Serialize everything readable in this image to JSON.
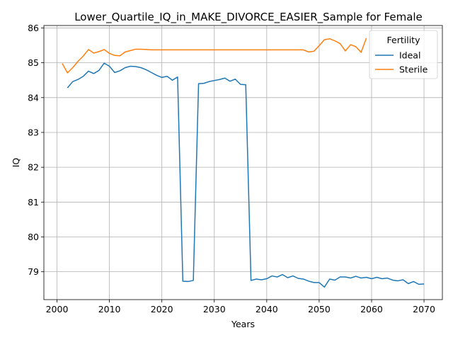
{
  "chart_data": {
    "type": "line",
    "title": "Lower_Quartile_IQ_in_MAKE_DIVORCE_EASIER_Sample for Female",
    "xlabel": "Years",
    "ylabel": "IQ",
    "xlim": [
      1997.5,
      2073.5
    ],
    "ylim": [
      78.2,
      86.07
    ],
    "xticks": [
      2000,
      2010,
      2020,
      2030,
      2040,
      2050,
      2060,
      2070
    ],
    "yticks": [
      79,
      80,
      81,
      82,
      83,
      84,
      85,
      86
    ],
    "grid": true,
    "legend": {
      "title": "Fertility",
      "position": "top-right"
    },
    "series": [
      {
        "name": "Ideal",
        "color": "#1f77b4",
        "x": [
          2002,
          2003,
          2004,
          2005,
          2006,
          2007,
          2008,
          2009,
          2010,
          2011,
          2012,
          2013,
          2014,
          2015,
          2016,
          2017,
          2018,
          2019,
          2020,
          2021,
          2022,
          2023,
          2024,
          2025,
          2026,
          2027,
          2028,
          2029,
          2030,
          2031,
          2032,
          2033,
          2034,
          2035,
          2036,
          2037,
          2038,
          2039,
          2040,
          2041,
          2042,
          2043,
          2044,
          2045,
          2046,
          2047,
          2048,
          2049,
          2050,
          2051,
          2052,
          2053,
          2054,
          2055,
          2056,
          2057,
          2058,
          2059,
          2060,
          2061,
          2062,
          2063,
          2064,
          2065,
          2066,
          2067,
          2068,
          2069,
          2070
        ],
        "values": [
          84.28,
          84.46,
          84.52,
          84.61,
          84.76,
          84.69,
          84.78,
          84.99,
          84.9,
          84.72,
          84.77,
          84.86,
          84.9,
          84.89,
          84.86,
          84.8,
          84.72,
          84.64,
          84.58,
          84.61,
          84.5,
          84.59,
          78.73,
          78.72,
          78.75,
          84.4,
          84.41,
          84.46,
          84.49,
          84.52,
          84.56,
          84.47,
          84.53,
          84.38,
          84.37,
          78.75,
          78.79,
          78.77,
          78.8,
          78.88,
          78.85,
          78.92,
          78.83,
          78.88,
          78.81,
          78.79,
          78.73,
          78.69,
          78.69,
          78.56,
          78.79,
          78.76,
          78.85,
          78.85,
          78.82,
          78.87,
          78.82,
          78.84,
          78.8,
          78.84,
          78.8,
          78.82,
          78.76,
          78.74,
          78.77,
          78.66,
          78.72,
          78.64,
          78.65
        ]
      },
      {
        "name": "Sterile",
        "color": "#ff7f0e",
        "x": [
          2001,
          2002,
          2003,
          2004,
          2005,
          2006,
          2007,
          2008,
          2009,
          2010,
          2011,
          2012,
          2013,
          2014,
          2015,
          2016,
          2017,
          2018,
          2019,
          2020,
          2021,
          2022,
          2023,
          2024,
          2025,
          2026,
          2027,
          2028,
          2029,
          2030,
          2031,
          2032,
          2033,
          2034,
          2035,
          2036,
          2037,
          2038,
          2039,
          2040,
          2041,
          2042,
          2043,
          2044,
          2045,
          2046,
          2047,
          2048,
          2049,
          2050,
          2051,
          2052,
          2053,
          2054,
          2055,
          2056,
          2057,
          2058,
          2059
        ],
        "values": [
          84.98,
          84.71,
          84.86,
          85.04,
          85.19,
          85.38,
          85.28,
          85.32,
          85.38,
          85.27,
          85.21,
          85.2,
          85.31,
          85.35,
          85.39,
          85.39,
          85.38,
          85.37,
          85.37,
          85.37,
          85.37,
          85.37,
          85.37,
          85.37,
          85.37,
          85.37,
          85.37,
          85.37,
          85.37,
          85.37,
          85.37,
          85.37,
          85.37,
          85.37,
          85.37,
          85.37,
          85.37,
          85.37,
          85.37,
          85.37,
          85.37,
          85.37,
          85.37,
          85.37,
          85.37,
          85.37,
          85.37,
          85.31,
          85.33,
          85.49,
          85.66,
          85.69,
          85.63,
          85.55,
          85.34,
          85.52,
          85.46,
          85.3,
          85.71
        ]
      }
    ]
  }
}
